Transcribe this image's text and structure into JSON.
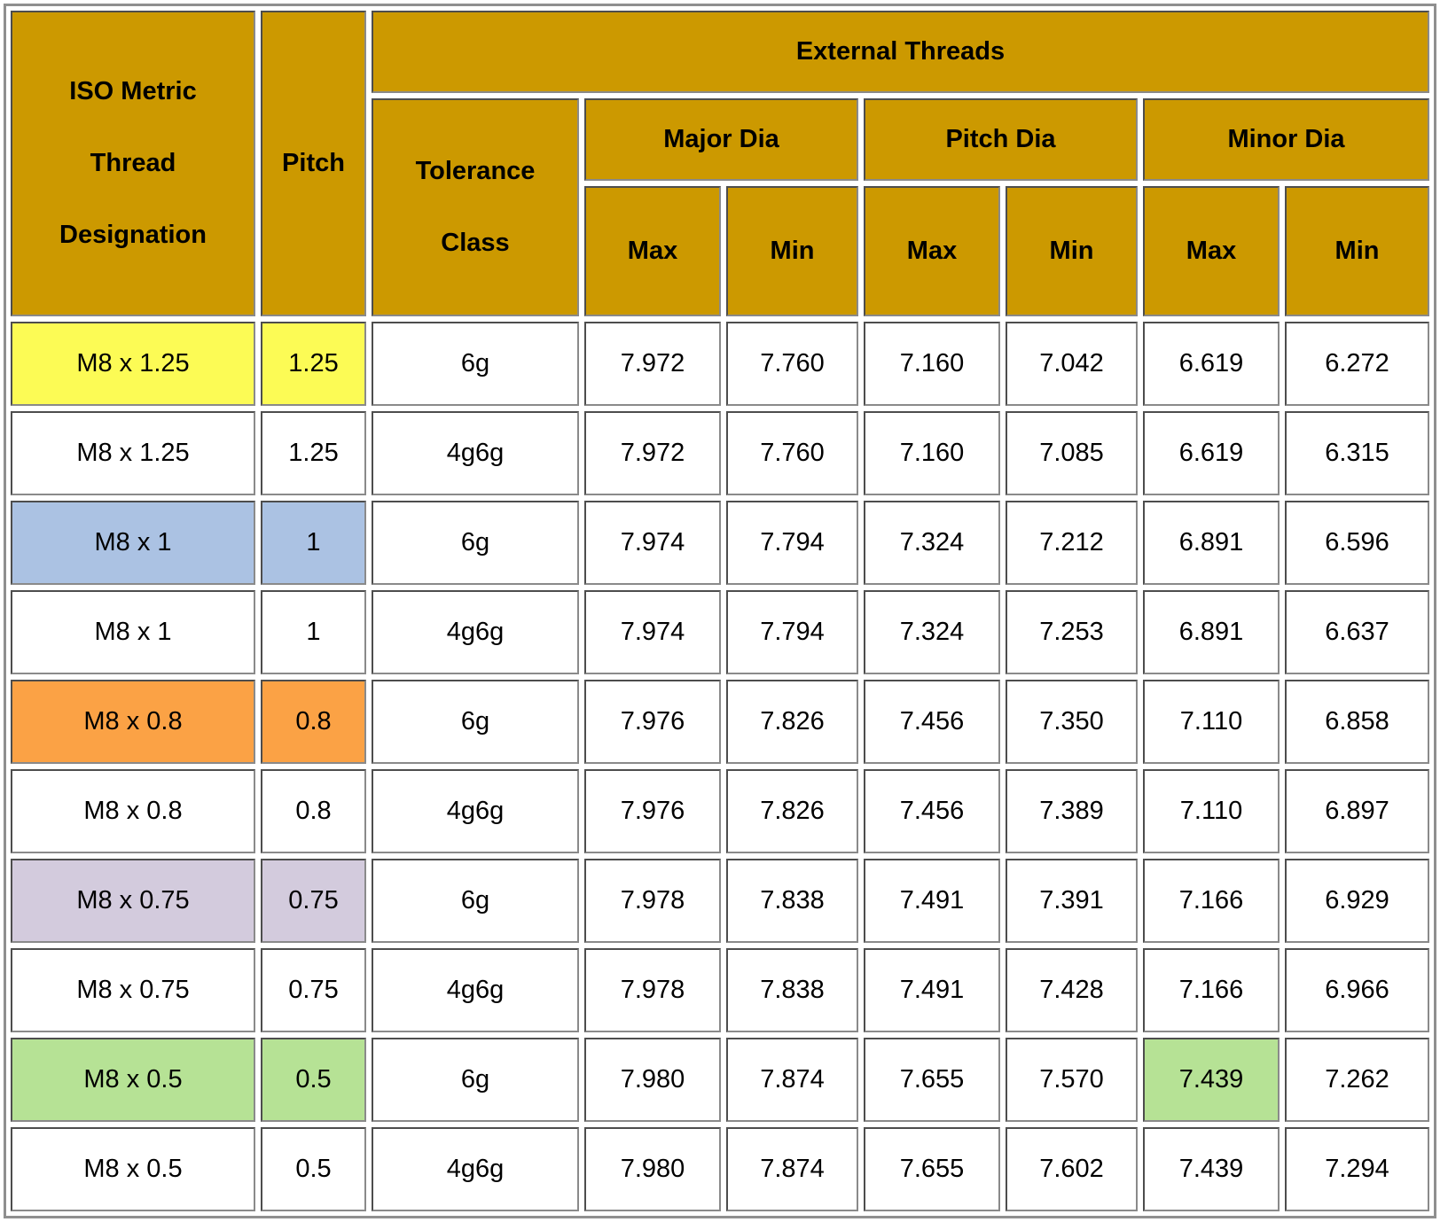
{
  "table": {
    "header": {
      "designation_lines": [
        "ISO Metric",
        "Thread",
        "Designation"
      ],
      "pitch": "Pitch",
      "external_threads": "External Threads",
      "tolerance_lines": [
        "Tolerance",
        "Class"
      ],
      "major_dia": "Major Dia",
      "pitch_dia": "Pitch Dia",
      "minor_dia": "Minor Dia",
      "max": "Max",
      "min": "Min"
    },
    "columns": [
      "ISO Metric Thread Designation",
      "Pitch",
      "Tolerance Class",
      "Major Dia Max",
      "Major Dia Min",
      "Pitch Dia Max",
      "Pitch Dia Min",
      "Minor Dia Max",
      "Minor Dia Min"
    ],
    "colors": {
      "header_bg": "#CC9900",
      "highlight_yellow": "#FCFB55",
      "highlight_blue": "#ABC2E3",
      "highlight_orange": "#FBA245",
      "highlight_lavender": "#D3CBDD",
      "highlight_green": "#B6E295"
    },
    "rows": [
      {
        "cells": [
          "M8 x 1.25",
          "1.25",
          "6g",
          "7.972",
          "7.760",
          "7.160",
          "7.042",
          "6.619",
          "6.272"
        ],
        "highlights": [
          "yellow",
          "yellow",
          null,
          null,
          null,
          null,
          null,
          null,
          null
        ]
      },
      {
        "cells": [
          "M8 x 1.25",
          "1.25",
          "4g6g",
          "7.972",
          "7.760",
          "7.160",
          "7.085",
          "6.619",
          "6.315"
        ],
        "highlights": [
          null,
          null,
          null,
          null,
          null,
          null,
          null,
          null,
          null
        ]
      },
      {
        "cells": [
          "M8 x 1",
          "1",
          "6g",
          "7.974",
          "7.794",
          "7.324",
          "7.212",
          "6.891",
          "6.596"
        ],
        "highlights": [
          "blue",
          "blue",
          null,
          null,
          null,
          null,
          null,
          null,
          null
        ]
      },
      {
        "cells": [
          "M8 x 1",
          "1",
          "4g6g",
          "7.974",
          "7.794",
          "7.324",
          "7.253",
          "6.891",
          "6.637"
        ],
        "highlights": [
          null,
          null,
          null,
          null,
          null,
          null,
          null,
          null,
          null
        ]
      },
      {
        "cells": [
          "M8 x 0.8",
          "0.8",
          "6g",
          "7.976",
          "7.826",
          "7.456",
          "7.350",
          "7.110",
          "6.858"
        ],
        "highlights": [
          "orange",
          "orange",
          null,
          null,
          null,
          null,
          null,
          null,
          null
        ]
      },
      {
        "cells": [
          "M8 x 0.8",
          "0.8",
          "4g6g",
          "7.976",
          "7.826",
          "7.456",
          "7.389",
          "7.110",
          "6.897"
        ],
        "highlights": [
          null,
          null,
          null,
          null,
          null,
          null,
          null,
          null,
          null
        ]
      },
      {
        "cells": [
          "M8 x 0.75",
          "0.75",
          "6g",
          "7.978",
          "7.838",
          "7.491",
          "7.391",
          "7.166",
          "6.929"
        ],
        "highlights": [
          "lavender",
          "lavender",
          null,
          null,
          null,
          null,
          null,
          null,
          null
        ]
      },
      {
        "cells": [
          "M8 x 0.75",
          "0.75",
          "4g6g",
          "7.978",
          "7.838",
          "7.491",
          "7.428",
          "7.166",
          "6.966"
        ],
        "highlights": [
          null,
          null,
          null,
          null,
          null,
          null,
          null,
          null,
          null
        ]
      },
      {
        "cells": [
          "M8 x 0.5",
          "0.5",
          "6g",
          "7.980",
          "7.874",
          "7.655",
          "7.570",
          "7.439",
          "7.262"
        ],
        "highlights": [
          "green",
          "green",
          null,
          null,
          null,
          null,
          null,
          "green",
          null
        ]
      },
      {
        "cells": [
          "M8 x 0.5",
          "0.5",
          "4g6g",
          "7.980",
          "7.874",
          "7.655",
          "7.602",
          "7.439",
          "7.294"
        ],
        "highlights": [
          null,
          null,
          null,
          null,
          null,
          null,
          null,
          null,
          null
        ]
      }
    ]
  }
}
